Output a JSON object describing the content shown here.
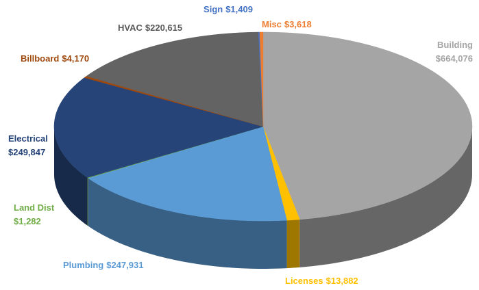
{
  "chart_data": {
    "type": "pie",
    "is_3d": true,
    "categories": [
      "Building",
      "Licenses",
      "Plumbing",
      "Land Dist",
      "Electrical",
      "Billboard",
      "HVAC",
      "Sign",
      "Misc"
    ],
    "values": [
      664076,
      13882,
      247931,
      1282,
      249847,
      4170,
      220615,
      1409,
      3618
    ],
    "value_labels": [
      "$664,076",
      "$13,882",
      "$247,931",
      "$1,282",
      "$249,847",
      "$4,170",
      "$220,615",
      "$1,409",
      "$3,618"
    ],
    "colors": [
      "#a5a5a5",
      "#ffc000",
      "#5b9bd5",
      "#70ad47",
      "#264478",
      "#9e480e",
      "#636363",
      "#4472c4",
      "#ed7d31"
    ],
    "label_colors": [
      "#a5a5a5",
      "#ffc000",
      "#5b9bd5",
      "#70ad47",
      "#264478",
      "#9e480e",
      "#595959",
      "#4472c4",
      "#ed7d31"
    ]
  }
}
